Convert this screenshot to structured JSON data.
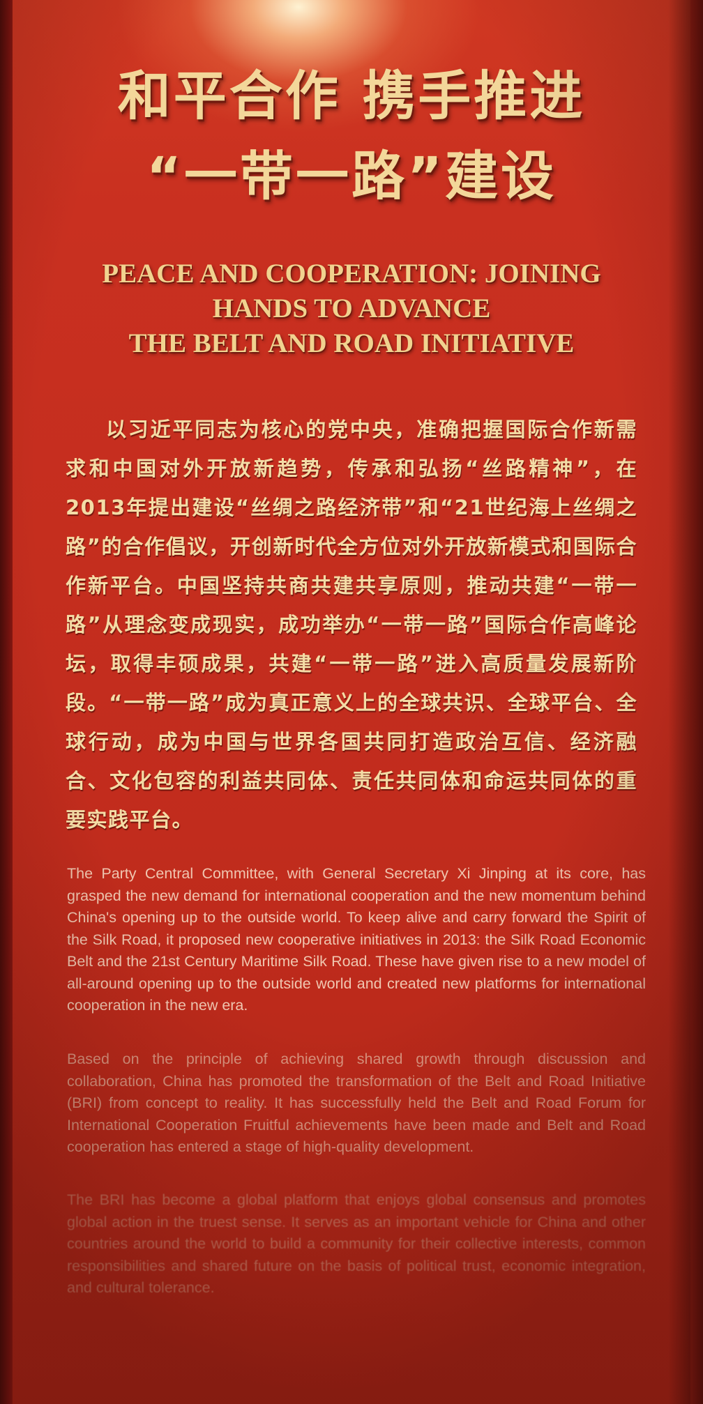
{
  "photo": {
    "subject": "red exhibition wall panel",
    "colors": {
      "panel_red": "#c93020",
      "gold_text": "#f3d79a",
      "light_spot": "#fff6d6"
    }
  },
  "panel": {
    "title_zh_line1": "和平合作 携手推进",
    "title_zh_line2": "“一带一路”建设",
    "title_en_line1": "PEACE AND COOPERATION: JOINING",
    "title_en_line2": "HANDS TO ADVANCE",
    "title_en_line3": "THE BELT AND ROAD INITIATIVE",
    "body_zh": "以习近平同志为核心的党中央，准确把握国际合作新需求和中国对外开放新趋势，传承和弘扬“丝路精神”，在2013年提出建设“丝绸之路经济带”和“21世纪海上丝绸之路”的合作倡议，开创新时代全方位对外开放新模式和国际合作新平台。中国坚持共商共建共享原则，推动共建“一带一路”从理念变成现实，成功举办“一带一路”国际合作高峰论坛，取得丰硕成果，共建“一带一路”进入高质量发展新阶段。“一带一路”成为真正意义上的全球共识、全球平台、全球行动，成为中国与世界各国共同打造政治互信、经济融合、文化包容的利益共同体、责任共同体和命运共同体的重要实践平台。",
    "body_en_p1": "The Party Central Committee, with General Secretary Xi Jinping at its core, has grasped the new demand for international cooperation and the new momentum behind China's opening up to the outside world. To keep alive and carry forward the Spirit of the Silk Road, it proposed new cooperative initiatives in 2013: the Silk Road Economic Belt and the 21st Century Maritime Silk Road. These have given rise to a new model of all-around opening up to the outside world and created new platforms for international cooperation in the new era.",
    "body_en_p2": "Based on the principle of achieving shared growth through discussion and collaboration, China has promoted the transformation of the Belt and Road Initiative (BRI) from concept to reality. It has successfully held the Belt and Road Forum for International Cooperation Fruitful achievements have been made and Belt and Road cooperation has entered a stage of high-quality development.",
    "body_en_p3": "The BRI has become a global platform that enjoys global consensus and promotes global action in the truest sense. It serves as an important vehicle for China and other countries around the world to build a community for their collective interests, common responsibilities and shared future on the basis of political trust, economic integration, and cultural tolerance."
  }
}
